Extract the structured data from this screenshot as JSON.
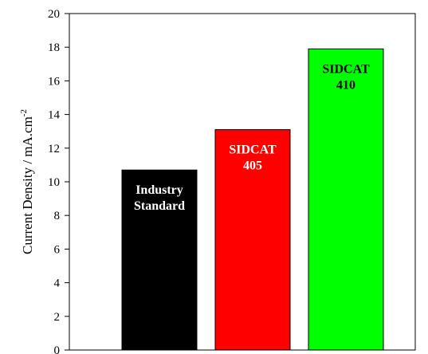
{
  "chart_data": {
    "type": "bar",
    "title": "",
    "xlabel": "",
    "ylabel": "Current Density / mA.cm",
    "ylabel_superscript": "-2",
    "ylim": [
      0,
      20
    ],
    "yticks": [
      "0",
      "2",
      "4",
      "6",
      "8",
      "10",
      "12",
      "14",
      "16",
      "18",
      "20"
    ],
    "grid": false,
    "categories": [
      "Industry Standard",
      "SIDCAT 405",
      "SIDCAT 410"
    ],
    "values": [
      10.7,
      13.1,
      17.9
    ],
    "bar_labels": [
      [
        "Industry",
        "Standard"
      ],
      [
        "SIDCAT",
        "405"
      ],
      [
        "SIDCAT",
        "410"
      ]
    ],
    "colors": [
      "#000000",
      "#ff0000",
      "#00ff00"
    ],
    "label_colors": [
      "#ffffff",
      "#ffffff",
      "#000000"
    ]
  }
}
